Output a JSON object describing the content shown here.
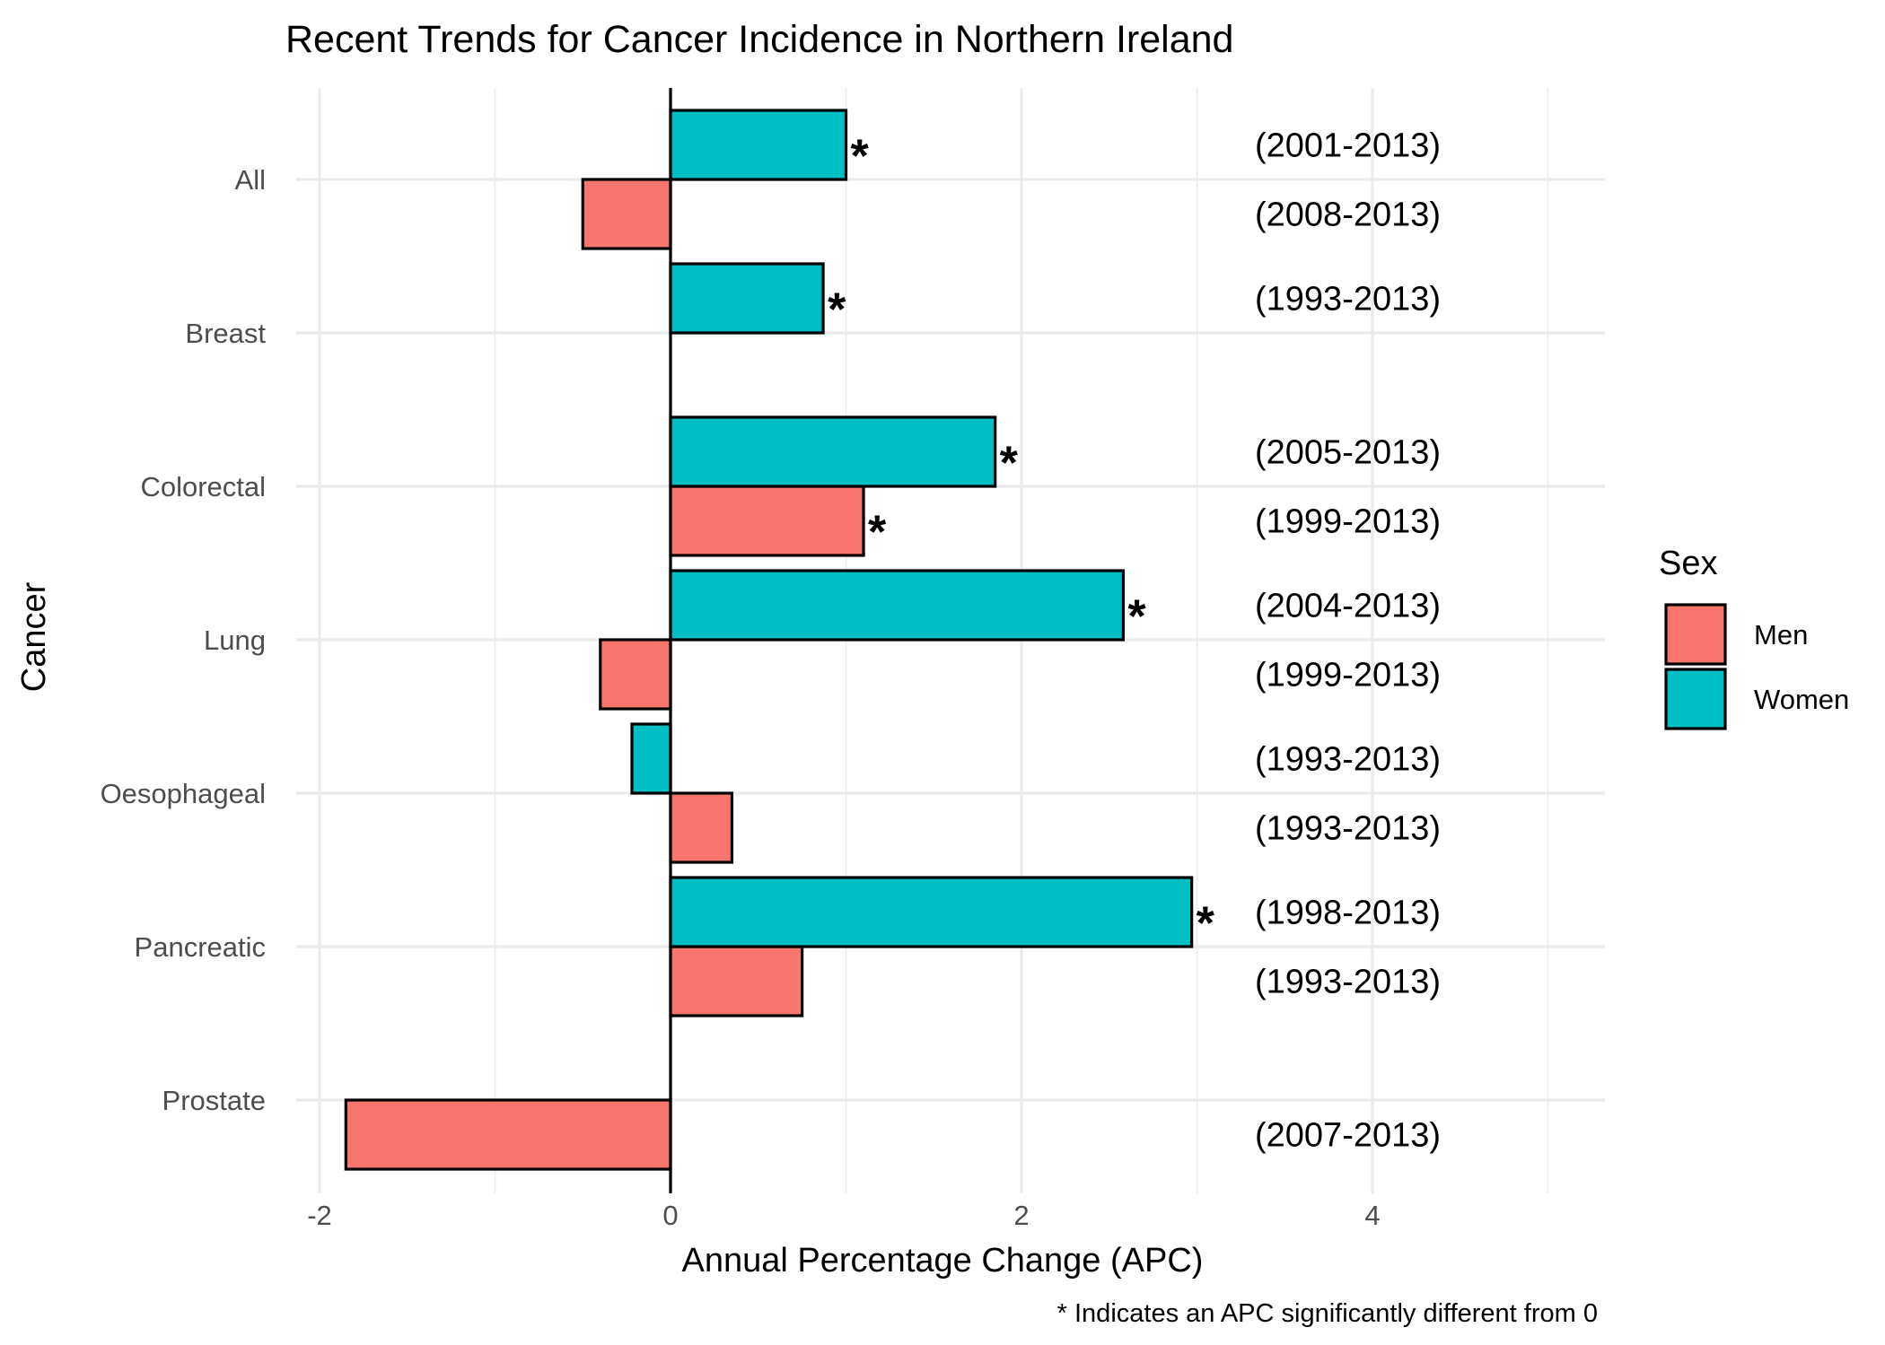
{
  "chart_data": {
    "type": "bar",
    "orientation": "horizontal",
    "title": "Recent Trends for Cancer Incidence in Northern Ireland",
    "xlabel": "Annual Percentage Change (APC)",
    "ylabel": "Cancer",
    "caption": "* Indicates an APC significantly different from 0",
    "xlim": [
      -2.2,
      5.4
    ],
    "xticks": [
      -2,
      0,
      2,
      4
    ],
    "xtick_labels": [
      "-2",
      "0",
      "2",
      "4"
    ],
    "grid": true,
    "legend": {
      "title": "Sex",
      "position": "right",
      "entries": [
        {
          "name": "Men",
          "color": "#F8766D"
        },
        {
          "name": "Women",
          "color": "#00BFC4"
        }
      ]
    },
    "significance_marker": "*",
    "categories": [
      "All",
      "Breast",
      "Colorectal",
      "Lung",
      "Oesophageal",
      "Pancreatic",
      "Prostate"
    ],
    "series": [
      {
        "name": "Men",
        "color": "#F8766D",
        "values": [
          -0.5,
          null,
          1.1,
          -0.4,
          0.35,
          0.75,
          -1.85
        ],
        "periods": [
          "(2008-2013)",
          null,
          "(1999-2013)",
          "(1999-2013)",
          "(1993-2013)",
          "(1993-2013)",
          "(2007-2013)"
        ],
        "significant": [
          false,
          false,
          true,
          false,
          false,
          false,
          false
        ]
      },
      {
        "name": "Women",
        "color": "#00BFC4",
        "values": [
          1.0,
          0.87,
          1.85,
          2.58,
          -0.22,
          2.97,
          null
        ],
        "periods": [
          "(2001-2013)",
          "(1993-2013)",
          "(2005-2013)",
          "(2004-2013)",
          "(1993-2013)",
          "(1998-2013)",
          null
        ],
        "significant": [
          true,
          true,
          true,
          true,
          false,
          true,
          false
        ]
      }
    ]
  }
}
